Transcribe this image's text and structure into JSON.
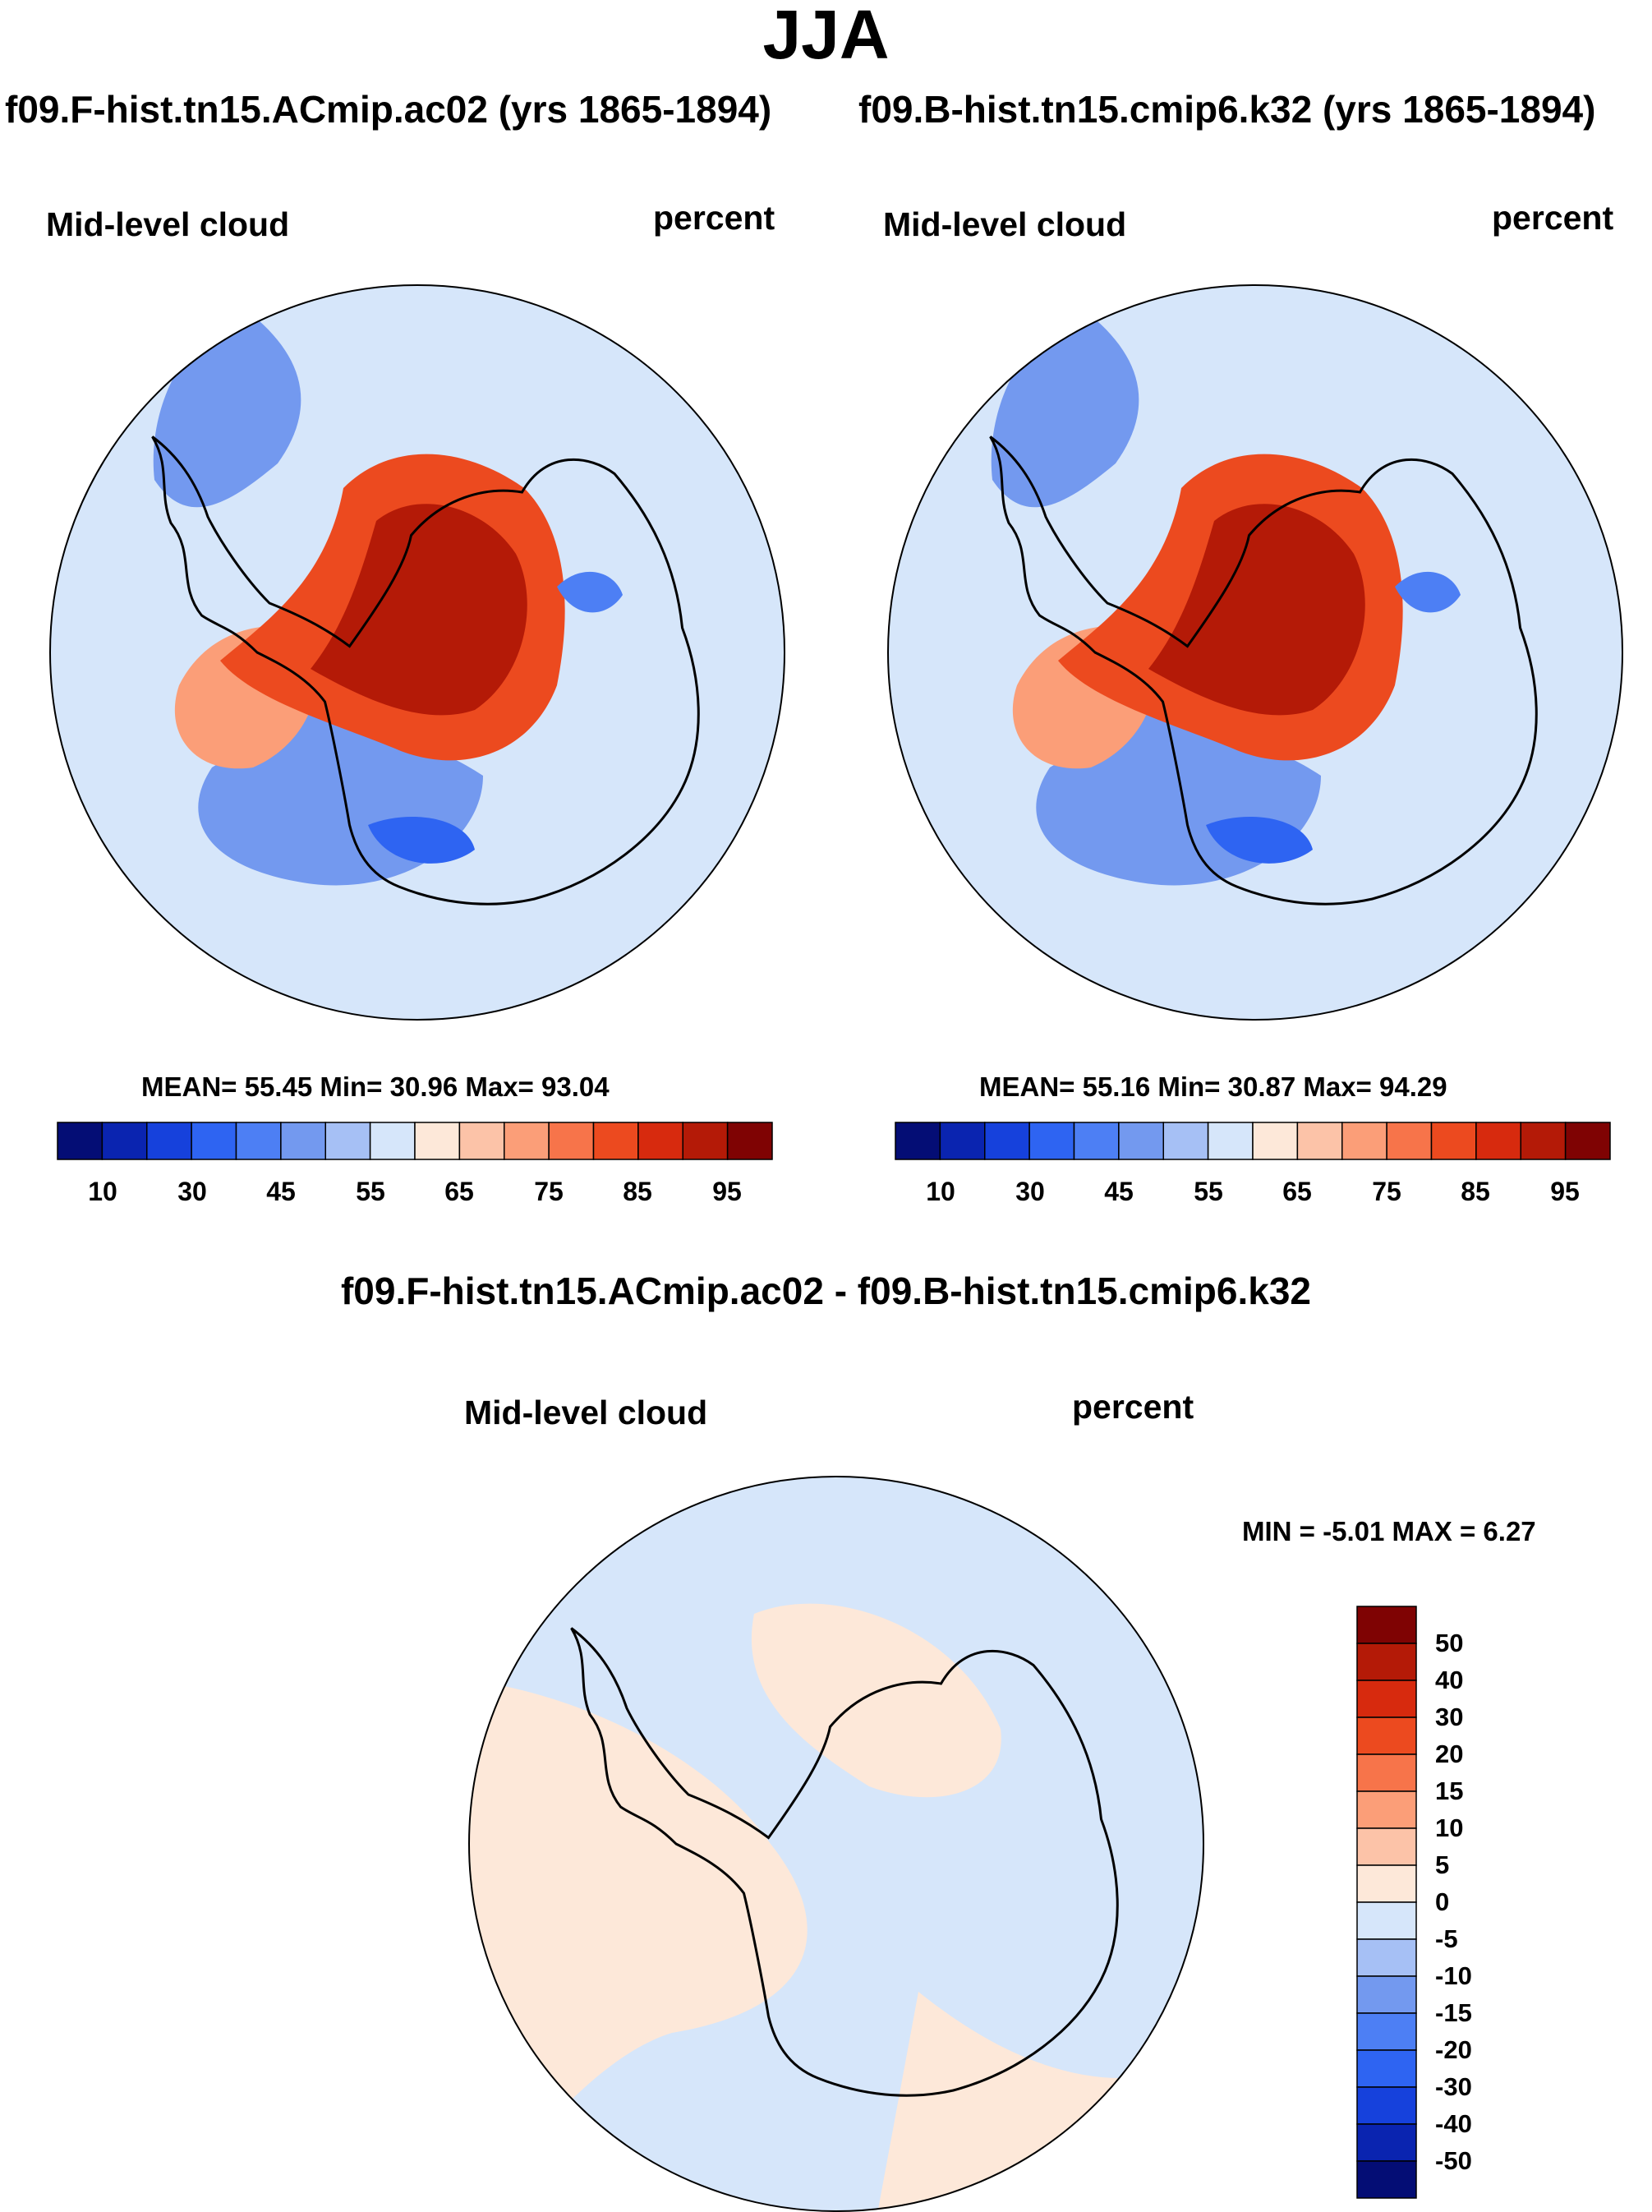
{
  "figure_title": "JJA",
  "chart_data": [
    {
      "type": "heatmap",
      "projection": "south-polar-stereographic",
      "run_title": "f09.F-hist.tn15.ACmip.ac02 (yrs 1865-1894)",
      "variable": "Mid-level cloud",
      "units": "percent",
      "stats": {
        "mean": "55.45",
        "min": "30.96",
        "max": "93.04"
      },
      "stats_text": "MEAN=  55.45  Min=  30.96  Max=  93.04",
      "levels": [
        5,
        10,
        20,
        30,
        40,
        45,
        50,
        55,
        60,
        65,
        70,
        75,
        80,
        85,
        90,
        95
      ],
      "colorbar_labels": [
        "10",
        "30",
        "45",
        "55",
        "65",
        "75",
        "85",
        "95"
      ],
      "region_values": {
        "ocean": 50,
        "interior": 85,
        "west_antarctica": 65,
        "ross_sea": 40
      }
    },
    {
      "type": "heatmap",
      "projection": "south-polar-stereographic",
      "run_title": "f09.B-hist.tn15.cmip6.k32 (yrs 1865-1894)",
      "variable": "Mid-level cloud",
      "units": "percent",
      "stats": {
        "mean": "55.16",
        "min": "30.87",
        "max": "94.29"
      },
      "stats_text": "MEAN=  55.16  Min=  30.87  Max=  94.29",
      "levels": [
        5,
        10,
        20,
        30,
        40,
        45,
        50,
        55,
        60,
        65,
        70,
        75,
        80,
        85,
        90,
        95
      ],
      "colorbar_labels": [
        "10",
        "30",
        "45",
        "55",
        "65",
        "75",
        "85",
        "95"
      ],
      "region_values": {
        "ocean": 52,
        "interior": 87,
        "west_antarctica": 65,
        "ross_sea": 40
      }
    },
    {
      "type": "heatmap",
      "projection": "south-polar-stereographic",
      "diff_title": "f09.F-hist.tn15.ACmip.ac02 - f09.B-hist.tn15.cmip6.k32",
      "variable": "Mid-level cloud",
      "units": "percent",
      "stats": {
        "min": "-5.01",
        "max": "6.27"
      },
      "stats_text": "MIN =  -5.01 MAX =   6.27",
      "levels": [
        -50,
        -40,
        -30,
        -20,
        -15,
        -10,
        -5,
        0,
        5,
        10,
        15,
        20,
        30,
        40,
        50
      ],
      "colorbar_labels": [
        "50",
        "40",
        "30",
        "20",
        "15",
        "10",
        "5",
        "0",
        "-5",
        "-10",
        "-15",
        "-20",
        "-30",
        "-40",
        "-50"
      ],
      "region_values": {
        "pacific_sector": 2,
        "atlantic_indian_sector": -2,
        "east_antarctica": -2,
        "west_antarctica": 2
      }
    }
  ],
  "colors": {
    "abs_palette": [
      "#040d75",
      "#0a24b0",
      "#1641dc",
      "#2e64f2",
      "#4d7ff4",
      "#7399ef",
      "#a6c0f5",
      "#d6e6fa",
      "#fde8d9",
      "#fcc3a8",
      "#fb9e78",
      "#f7744a",
      "#ec4a1f",
      "#d72a0e",
      "#b41a07",
      "#7f0303"
    ],
    "diff_palette": [
      "#040d75",
      "#0a24b0",
      "#1641dc",
      "#2e64f2",
      "#4d7ff4",
      "#7399ef",
      "#a6c0f5",
      "#d6e6fa",
      "#fde8d9",
      "#fcc3a8",
      "#fb9e78",
      "#f7744a",
      "#ec4a1f",
      "#d72a0e",
      "#b41a07",
      "#7f0303"
    ]
  }
}
